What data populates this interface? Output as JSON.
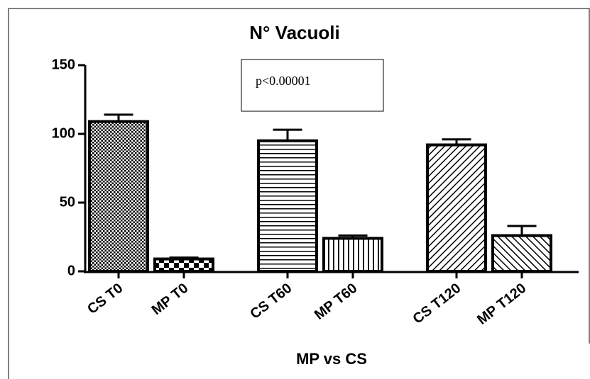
{
  "chart_data": {
    "type": "bar",
    "title": "N° Vacuoli",
    "x_label": "MP vs CS",
    "annotation": "p<0.00001",
    "categories": [
      "CS T0",
      "MP T0",
      "CS T60",
      "MP T60",
      "CS T120",
      "MP T120"
    ],
    "values": [
      109,
      9,
      95,
      24,
      92,
      26
    ],
    "errors": [
      5,
      1,
      8,
      2,
      4,
      7
    ],
    "color": "#000000",
    "ylim": [
      0,
      150
    ],
    "yticks": [
      0,
      50,
      100,
      150
    ],
    "grid": false
  }
}
